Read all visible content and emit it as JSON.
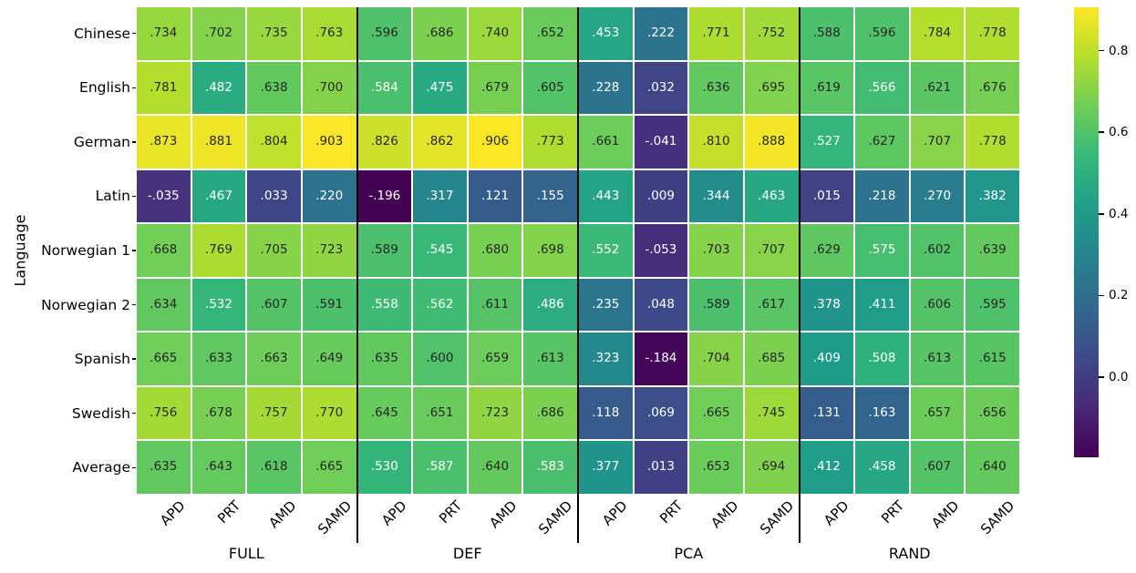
{
  "figure": {
    "background": "#ffffff"
  },
  "chart_data": {
    "type": "heatmap",
    "ylabel": "Language",
    "rows": [
      "Chinese",
      "English",
      "German",
      "Latin",
      "Norwegian 1",
      "Norwegian 2",
      "Spanish",
      "Swedish",
      "Average"
    ],
    "column_groups": [
      "FULL",
      "DEF",
      "PCA",
      "RAND"
    ],
    "columns_per_group": [
      "APD",
      "PRT",
      "AMD",
      "SAMD"
    ],
    "values": [
      [
        0.734,
        0.702,
        0.735,
        0.763,
        0.596,
        0.686,
        0.74,
        0.652,
        0.453,
        0.222,
        0.771,
        0.752,
        0.588,
        0.596,
        0.784,
        0.778
      ],
      [
        0.781,
        0.482,
        0.638,
        0.7,
        0.584,
        0.475,
        0.679,
        0.605,
        0.228,
        0.032,
        0.636,
        0.695,
        0.619,
        0.566,
        0.621,
        0.676
      ],
      [
        0.873,
        0.881,
        0.804,
        0.903,
        0.826,
        0.862,
        0.906,
        0.773,
        0.661,
        -0.041,
        0.81,
        0.888,
        0.527,
        0.627,
        0.707,
        0.778
      ],
      [
        -0.035,
        0.467,
        0.033,
        0.22,
        -0.196,
        0.317,
        0.121,
        0.155,
        0.443,
        0.009,
        0.344,
        0.463,
        0.015,
        0.218,
        0.27,
        0.382
      ],
      [
        0.668,
        0.769,
        0.705,
        0.723,
        0.589,
        0.545,
        0.68,
        0.698,
        0.552,
        -0.053,
        0.703,
        0.707,
        0.629,
        0.575,
        0.602,
        0.639
      ],
      [
        0.634,
        0.532,
        0.607,
        0.591,
        0.558,
        0.562,
        0.611,
        0.486,
        0.235,
        0.048,
        0.589,
        0.617,
        0.378,
        0.411,
        0.606,
        0.595
      ],
      [
        0.665,
        0.633,
        0.663,
        0.649,
        0.635,
        0.6,
        0.659,
        0.613,
        0.323,
        -0.184,
        0.704,
        0.685,
        0.409,
        0.508,
        0.613,
        0.615
      ],
      [
        0.756,
        0.678,
        0.757,
        0.77,
        0.645,
        0.651,
        0.723,
        0.686,
        0.118,
        0.069,
        0.665,
        0.745,
        0.131,
        0.163,
        0.657,
        0.656
      ],
      [
        0.635,
        0.643,
        0.618,
        0.665,
        0.53,
        0.587,
        0.64,
        0.583,
        0.377,
        0.013,
        0.653,
        0.694,
        0.412,
        0.458,
        0.607,
        0.64
      ]
    ],
    "vmin": -0.196,
    "vmax": 0.906,
    "colormap": "viridis",
    "colormap_stops": [
      "#440154",
      "#482878",
      "#3e4a89",
      "#31688e",
      "#26828e",
      "#1f9e89",
      "#35b779",
      "#6dcd59",
      "#b4de2c",
      "#fde725"
    ],
    "colorbar_ticks": [
      0.8,
      0.6,
      0.4,
      0.2,
      0.0
    ],
    "annotation_text_dark": "#262626",
    "annotation_text_light": "#ffffff",
    "group_separator_color": "#000000",
    "cell_gap_color": "#ffffff",
    "legend_position": "right",
    "grid": false
  }
}
